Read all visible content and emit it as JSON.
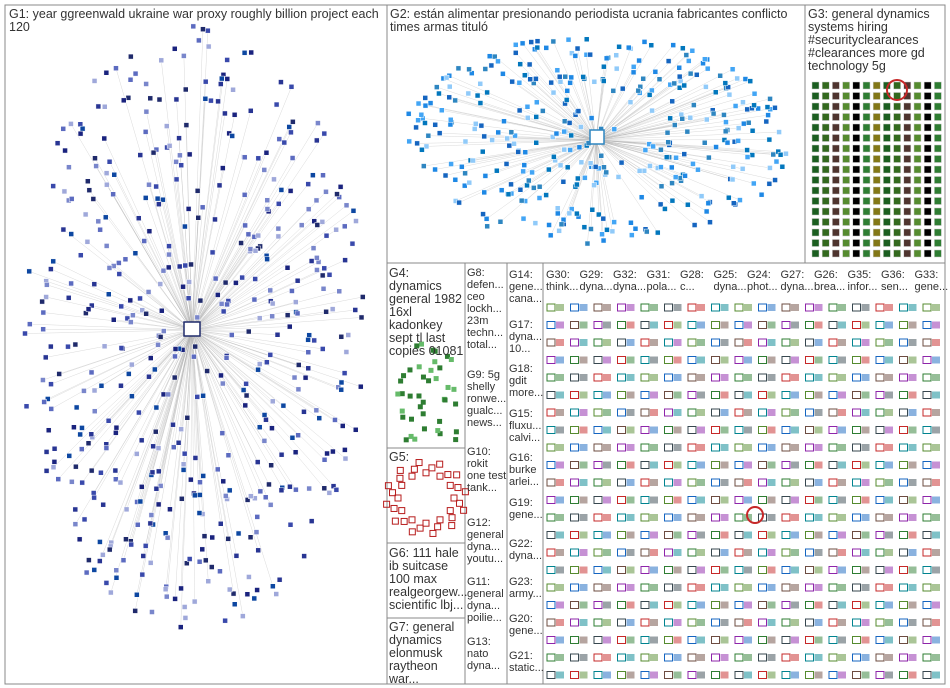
{
  "groups": {
    "g1": "G1: year ggreenwald ukraine war proxy roughly billion project each 120",
    "g2": "G2: están alimentar presionando periodista ucrania fabricantes conflicto times armas tituló",
    "g3": "G3: general dynamics systems hiring #securityclearances #clearances more gd technology 5g",
    "g4": "G4: dynamics general 1982 16xl kadonkey sept tl last copies 01081",
    "g5": "G5:",
    "g6": "G6: 111 hale ib suitcase 100 max realgeorgew... scientific lbj...",
    "g7": "G7: general dynamics elonmusk raytheon war...",
    "g8": "G8: defen... ceo lockh... 23m techn... total...",
    "g9": "G9: 5g shelly ronwe... gualc... news...",
    "g10": "G10: rokit one test tank...",
    "g11": "G11: general dyna... poilie...",
    "g12": "G12: general dyna... youtu...",
    "g13": "G13: nato dyna...",
    "g14": "G14: gene... cana...",
    "g15": "G15: fluxu... calvi...",
    "g16": "G16: burke arlei...",
    "g17": "G17: dyna... 10...",
    "g18": "G18: gdit more...",
    "g19": "G19: gene...",
    "g20": "G20: gene...",
    "g21": "G21: static...",
    "g22": "G22: dyna...",
    "g23": "G23: army...",
    "small": [
      "G30: think...",
      "G29: dyna...",
      "G32: dyna...",
      "G31: pola...",
      "G28: c...",
      "G25: dyna...",
      "G24: phot...",
      "G27: dyna...",
      "G26: brea...",
      "G35: infor...",
      "G36: sen...",
      "G33: gene..."
    ]
  },
  "colors": {
    "g1": "#1f2a6b",
    "g2": "#2e86c1",
    "g3": "#2e7d32",
    "g4": "#2e7d32",
    "g5": "#b71c1c",
    "edge": "#b0b0b0",
    "grid": "#777777"
  }
}
